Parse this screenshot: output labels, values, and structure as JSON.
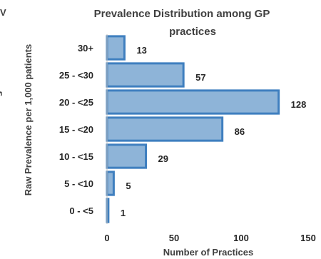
{
  "fragments": {
    "top_left": "V",
    "left_edge": "s"
  },
  "chart_data": {
    "type": "bar",
    "orientation": "horizontal",
    "title": "Prevalence Distribution among GP practices",
    "title_lines": [
      "Prevalence Distribution among GP",
      "practices"
    ],
    "xlabel": "Number of Practices",
    "ylabel": "Raw Prevalence per 1,000 patients",
    "categories": [
      "0 - <5",
      "5 - <10",
      "10 - <15",
      "15 - <20",
      "20 - <25",
      "25 - <30",
      "30+"
    ],
    "values": [
      1,
      5,
      29,
      86,
      128,
      57,
      13
    ],
    "data_labels": [
      "1",
      "5",
      "29",
      "86",
      "128",
      "57",
      "13"
    ],
    "xlim": [
      0,
      150
    ],
    "xticks": [
      0,
      50,
      100,
      150
    ],
    "xtick_labels": [
      "0",
      "50",
      "100",
      "150"
    ],
    "grid": false,
    "legend": "none",
    "bar_fill": "#8eb4d8",
    "bar_stroke": "#3f7fbf"
  }
}
